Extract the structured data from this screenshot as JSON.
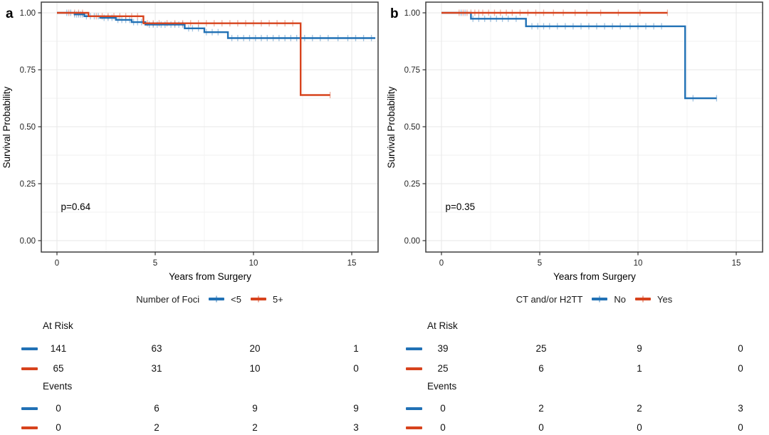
{
  "chart_data": [
    {
      "type": "line",
      "subtype": "kaplan-meier-step",
      "panel_label": "a",
      "title": "",
      "xlabel": "Years from Surgery",
      "ylabel": "Survival Probability",
      "annotation": "p=0.64",
      "xlim": [
        -0.8,
        16.3
      ],
      "ylim": [
        -0.05,
        1.05
      ],
      "x_ticks": [
        0,
        5,
        10,
        15
      ],
      "x_tick_labels": [
        "0",
        "5",
        "10",
        "15"
      ],
      "y_ticks": [
        0,
        0.25,
        0.5,
        0.75,
        1
      ],
      "y_tick_labels": [
        "0.00",
        "0.25",
        "0.50",
        "0.75",
        "1.00"
      ],
      "grid": true,
      "legend_title": "Number of Foci",
      "legend_position": "bottom",
      "series": [
        {
          "name": "<5",
          "color": "#2171b5",
          "steps": [
            [
              0,
              1
            ],
            [
              0.9,
              0.993
            ],
            [
              1.4,
              0.985
            ],
            [
              2.2,
              0.978
            ],
            [
              3,
              0.969
            ],
            [
              3.8,
              0.959
            ],
            [
              4.5,
              0.948
            ],
            [
              6.5,
              0.932
            ],
            [
              7.5,
              0.915
            ],
            [
              8.7,
              0.889
            ]
          ],
          "end_time": 16.2,
          "censor_times": [
            0.5,
            0.7,
            0.9,
            1.0,
            1.1,
            1.2,
            1.3,
            1.5,
            1.7,
            1.9,
            2.1,
            2.4,
            2.6,
            2.8,
            3.1,
            3.3,
            3.5,
            3.7,
            3.9,
            4.1,
            4.3,
            4.7,
            4.9,
            5.1,
            5.3,
            5.5,
            5.8,
            6.0,
            6.2,
            6.4,
            6.7,
            6.9,
            7.2,
            7.6,
            7.9,
            8.2,
            8.9,
            9.2,
            9.5,
            9.8,
            10.1,
            10.4,
            10.7,
            11.0,
            11.3,
            11.6,
            11.9,
            12.2,
            12.6,
            13.0,
            13.4,
            13.8,
            14.3,
            14.8,
            15.2,
            15.6,
            16.0
          ]
        },
        {
          "name": "5+",
          "color": "#d7431d",
          "steps": [
            [
              0,
              1
            ],
            [
              1.6,
              0.985
            ],
            [
              4.4,
              0.954
            ],
            [
              12.4,
              0.639
            ]
          ],
          "end_time": 13.9,
          "censor_times": [
            0.6,
            0.9,
            1.1,
            1.3,
            2.0,
            2.3,
            2.6,
            2.9,
            3.2,
            3.5,
            3.8,
            4.1,
            4.6,
            4.9,
            5.2,
            5.6,
            6.0,
            6.4,
            6.8,
            7.2,
            7.6,
            8.0,
            8.4,
            8.8,
            9.2,
            9.6,
            10.0,
            10.4,
            10.8,
            11.2,
            11.6,
            12.0,
            13.9
          ]
        }
      ],
      "risk_table": {
        "times": [
          0,
          5,
          10,
          15
        ],
        "sections": [
          {
            "label": "At Risk",
            "rows": [
              {
                "series": "<5",
                "color": "#2171b5",
                "values": [
                  "141",
                  "63",
                  "20",
                  "1"
                ]
              },
              {
                "series": "5+",
                "color": "#d7431d",
                "values": [
                  "65",
                  "31",
                  "10",
                  "0"
                ]
              }
            ]
          },
          {
            "label": "Events",
            "rows": [
              {
                "series": "<5",
                "color": "#2171b5",
                "values": [
                  "0",
                  "6",
                  "9",
                  "9"
                ]
              },
              {
                "series": "5+",
                "color": "#d7431d",
                "values": [
                  "0",
                  "2",
                  "2",
                  "3"
                ]
              }
            ]
          }
        ]
      }
    },
    {
      "type": "line",
      "subtype": "kaplan-meier-step",
      "panel_label": "b",
      "title": "",
      "xlabel": "Years from Surgery",
      "ylabel": "Survival Probability",
      "annotation": "p=0.35",
      "xlim": [
        -0.8,
        16.3
      ],
      "ylim": [
        -0.05,
        1.05
      ],
      "x_ticks": [
        0,
        5,
        10,
        15
      ],
      "x_tick_labels": [
        "0",
        "5",
        "10",
        "15"
      ],
      "y_ticks": [
        0,
        0.25,
        0.5,
        0.75,
        1
      ],
      "y_tick_labels": [
        "0.00",
        "0.25",
        "0.50",
        "0.75",
        "1.00"
      ],
      "grid": true,
      "legend_title": "CT and/or H2TT",
      "legend_position": "bottom",
      "series": [
        {
          "name": "No",
          "color": "#2171b5",
          "steps": [
            [
              0,
              1
            ],
            [
              1.5,
              0.974
            ],
            [
              4.3,
              0.941
            ],
            [
              12.4,
              0.625
            ]
          ],
          "end_time": 14.0,
          "censor_times": [
            1.0,
            1.2,
            1.6,
            1.9,
            2.2,
            2.5,
            2.8,
            3.1,
            3.4,
            3.8,
            4.6,
            4.9,
            5.2,
            5.5,
            5.9,
            6.3,
            6.7,
            7.1,
            7.5,
            7.9,
            8.3,
            8.7,
            9.1,
            9.6,
            10.0,
            10.4,
            10.8,
            11.2,
            12.8,
            14.0
          ]
        },
        {
          "name": "Yes",
          "color": "#d7431d",
          "steps": [
            [
              0,
              1
            ]
          ],
          "end_time": 11.5,
          "censor_times": [
            0.9,
            1.1,
            1.3,
            1.5,
            1.7,
            1.9,
            2.1,
            2.4,
            2.7,
            3.0,
            3.3,
            3.6,
            4.0,
            4.4,
            4.8,
            5.2,
            5.7,
            6.2,
            6.8,
            7.4,
            8.1,
            9.0,
            10.1,
            11.5
          ]
        }
      ],
      "risk_table": {
        "times": [
          0,
          5,
          10,
          15
        ],
        "sections": [
          {
            "label": "At Risk",
            "rows": [
              {
                "series": "No",
                "color": "#2171b5",
                "values": [
                  "39",
                  "25",
                  "9",
                  "0"
                ]
              },
              {
                "series": "Yes",
                "color": "#d7431d",
                "values": [
                  "25",
                  "6",
                  "1",
                  "0"
                ]
              }
            ]
          },
          {
            "label": "Events",
            "rows": [
              {
                "series": "No",
                "color": "#2171b5",
                "values": [
                  "0",
                  "2",
                  "2",
                  "3"
                ]
              },
              {
                "series": "Yes",
                "color": "#d7431d",
                "values": [
                  "0",
                  "0",
                  "0",
                  "0"
                ]
              }
            ]
          }
        ]
      }
    }
  ]
}
